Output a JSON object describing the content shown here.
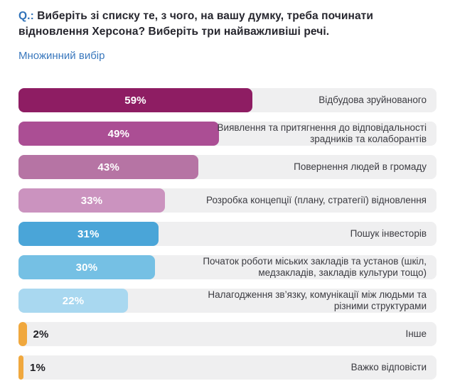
{
  "header": {
    "q_prefix": "Q.:",
    "question": "Виберіть зі списку те, з чого, на вашу думку, треба починати відновлення Херсона? Виберіть три найважливіші речі.",
    "subtitle": "Множинний вибір"
  },
  "colors": {
    "accent_blue": "#3173b9",
    "track_background": "#efeff0",
    "value_label_light": "#ffffff",
    "value_label_dark": "#1d1d22",
    "category_label_text": "#3b3b41"
  },
  "chart_data": {
    "type": "bar",
    "orientation": "horizontal",
    "unit": "%",
    "title": "Виберіть зі списку те, з чого, на вашу думку, треба починати відновлення Херсона? Виберіть три найважливіші речі.",
    "subtitle": "Множинний вибір",
    "xlim": [
      0,
      100
    ],
    "grid": false,
    "legend": false,
    "value_labels_position": "inside-center, outside-right for small bars",
    "categories": [
      "Відбудова зруйнованого",
      "Виявлення та притягнення до відповідальності зрадників та колаборантів",
      "Повернення людей в громаду",
      "Розробка концепції (плану, стратегії) відновлення",
      "Пошук інвесторів",
      "Початок роботи міських закладів та установ (шкіл, медзакладів, закладів культури тощо)",
      "Налагодження зв’язку, комунікації між людьми та різними структурами",
      "Інше",
      "Важко відповісти"
    ],
    "values": [
      59,
      49,
      43,
      33,
      31,
      30,
      22,
      2,
      1
    ],
    "value_labels": [
      "59%",
      "49%",
      "43%",
      "33%",
      "31%",
      "30%",
      "22%",
      "2%",
      "1%"
    ],
    "bar_colors": [
      "#8e1d63",
      "#ab4e94",
      "#b674a4",
      "#cb93bf",
      "#4aa5d8",
      "#75c0e4",
      "#a9d8f0",
      "#f0a83e",
      "#f0a83e"
    ]
  }
}
